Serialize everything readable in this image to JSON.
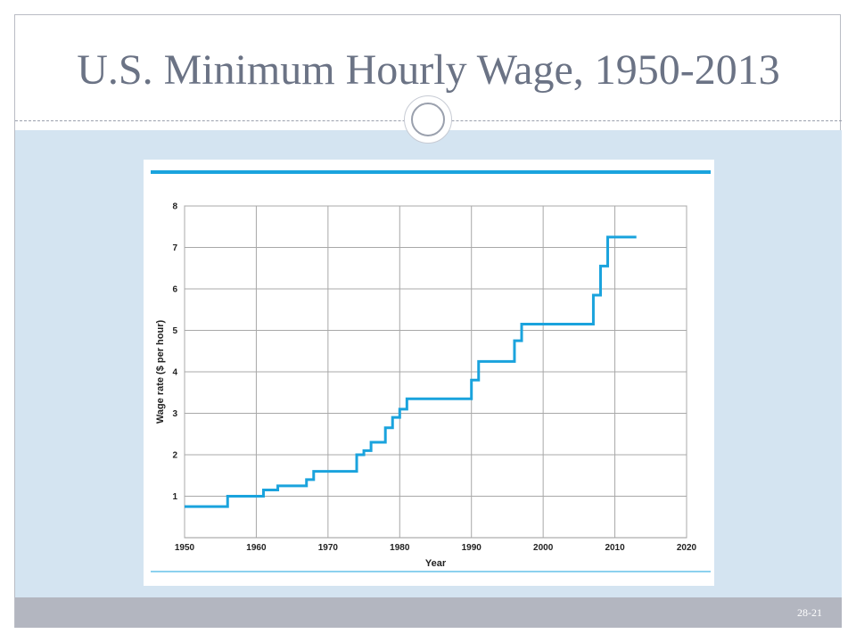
{
  "slide": {
    "title": "U.S. Minimum Hourly Wage, 1950-2013",
    "number": "28-21"
  },
  "colors": {
    "accent_line": "#1aa3dd",
    "title": "#6b7385",
    "band": "#d4e4f1",
    "footer": "#b3b6c0"
  },
  "chart_data": {
    "type": "line",
    "step": true,
    "title": "",
    "xlabel": "Year",
    "ylabel": "Wage rate ($ per hour)",
    "xlim": [
      1950,
      2020
    ],
    "ylim": [
      0,
      8
    ],
    "x_ticks": [
      1950,
      1960,
      1970,
      1980,
      1990,
      2000,
      2010,
      2020
    ],
    "y_ticks": [
      1,
      2,
      3,
      4,
      5,
      6,
      7,
      8
    ],
    "grid": true,
    "series": [
      {
        "x": [
          1950,
          1956,
          1961,
          1963,
          1967,
          1968,
          1974,
          1975,
          1976,
          1978,
          1979,
          1980,
          1981,
          1990,
          1991,
          1996,
          1997,
          2007,
          2008,
          2009,
          2013
        ],
        "y": [
          0.75,
          1.0,
          1.15,
          1.25,
          1.4,
          1.6,
          2.0,
          2.1,
          2.3,
          2.65,
          2.9,
          3.1,
          3.35,
          3.8,
          4.25,
          4.75,
          5.15,
          5.85,
          6.55,
          7.25,
          7.25
        ]
      }
    ]
  }
}
